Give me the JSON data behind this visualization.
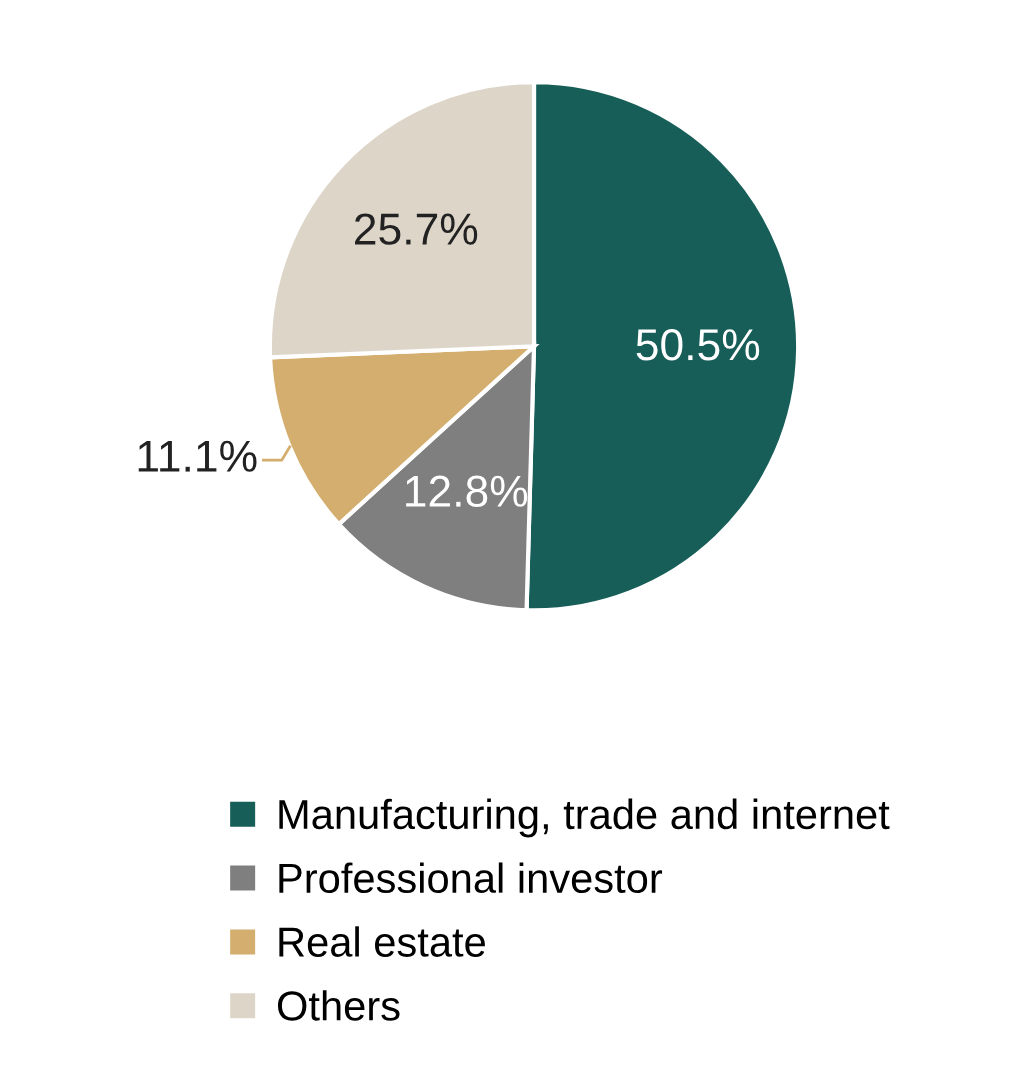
{
  "chart_data": {
    "type": "pie",
    "categories": [
      "Manufacturing, trade and internet",
      "Professional investor",
      "Real estate",
      "Others"
    ],
    "values": [
      50.5,
      12.8,
      11.1,
      25.7
    ],
    "colors": [
      "#175e58",
      "#7f7f7f",
      "#d4ae6e",
      "#ddd5c8"
    ],
    "value_labels": [
      "50.5%",
      "12.8%",
      "11.1%",
      "25.7%"
    ],
    "legend": "bottom"
  }
}
